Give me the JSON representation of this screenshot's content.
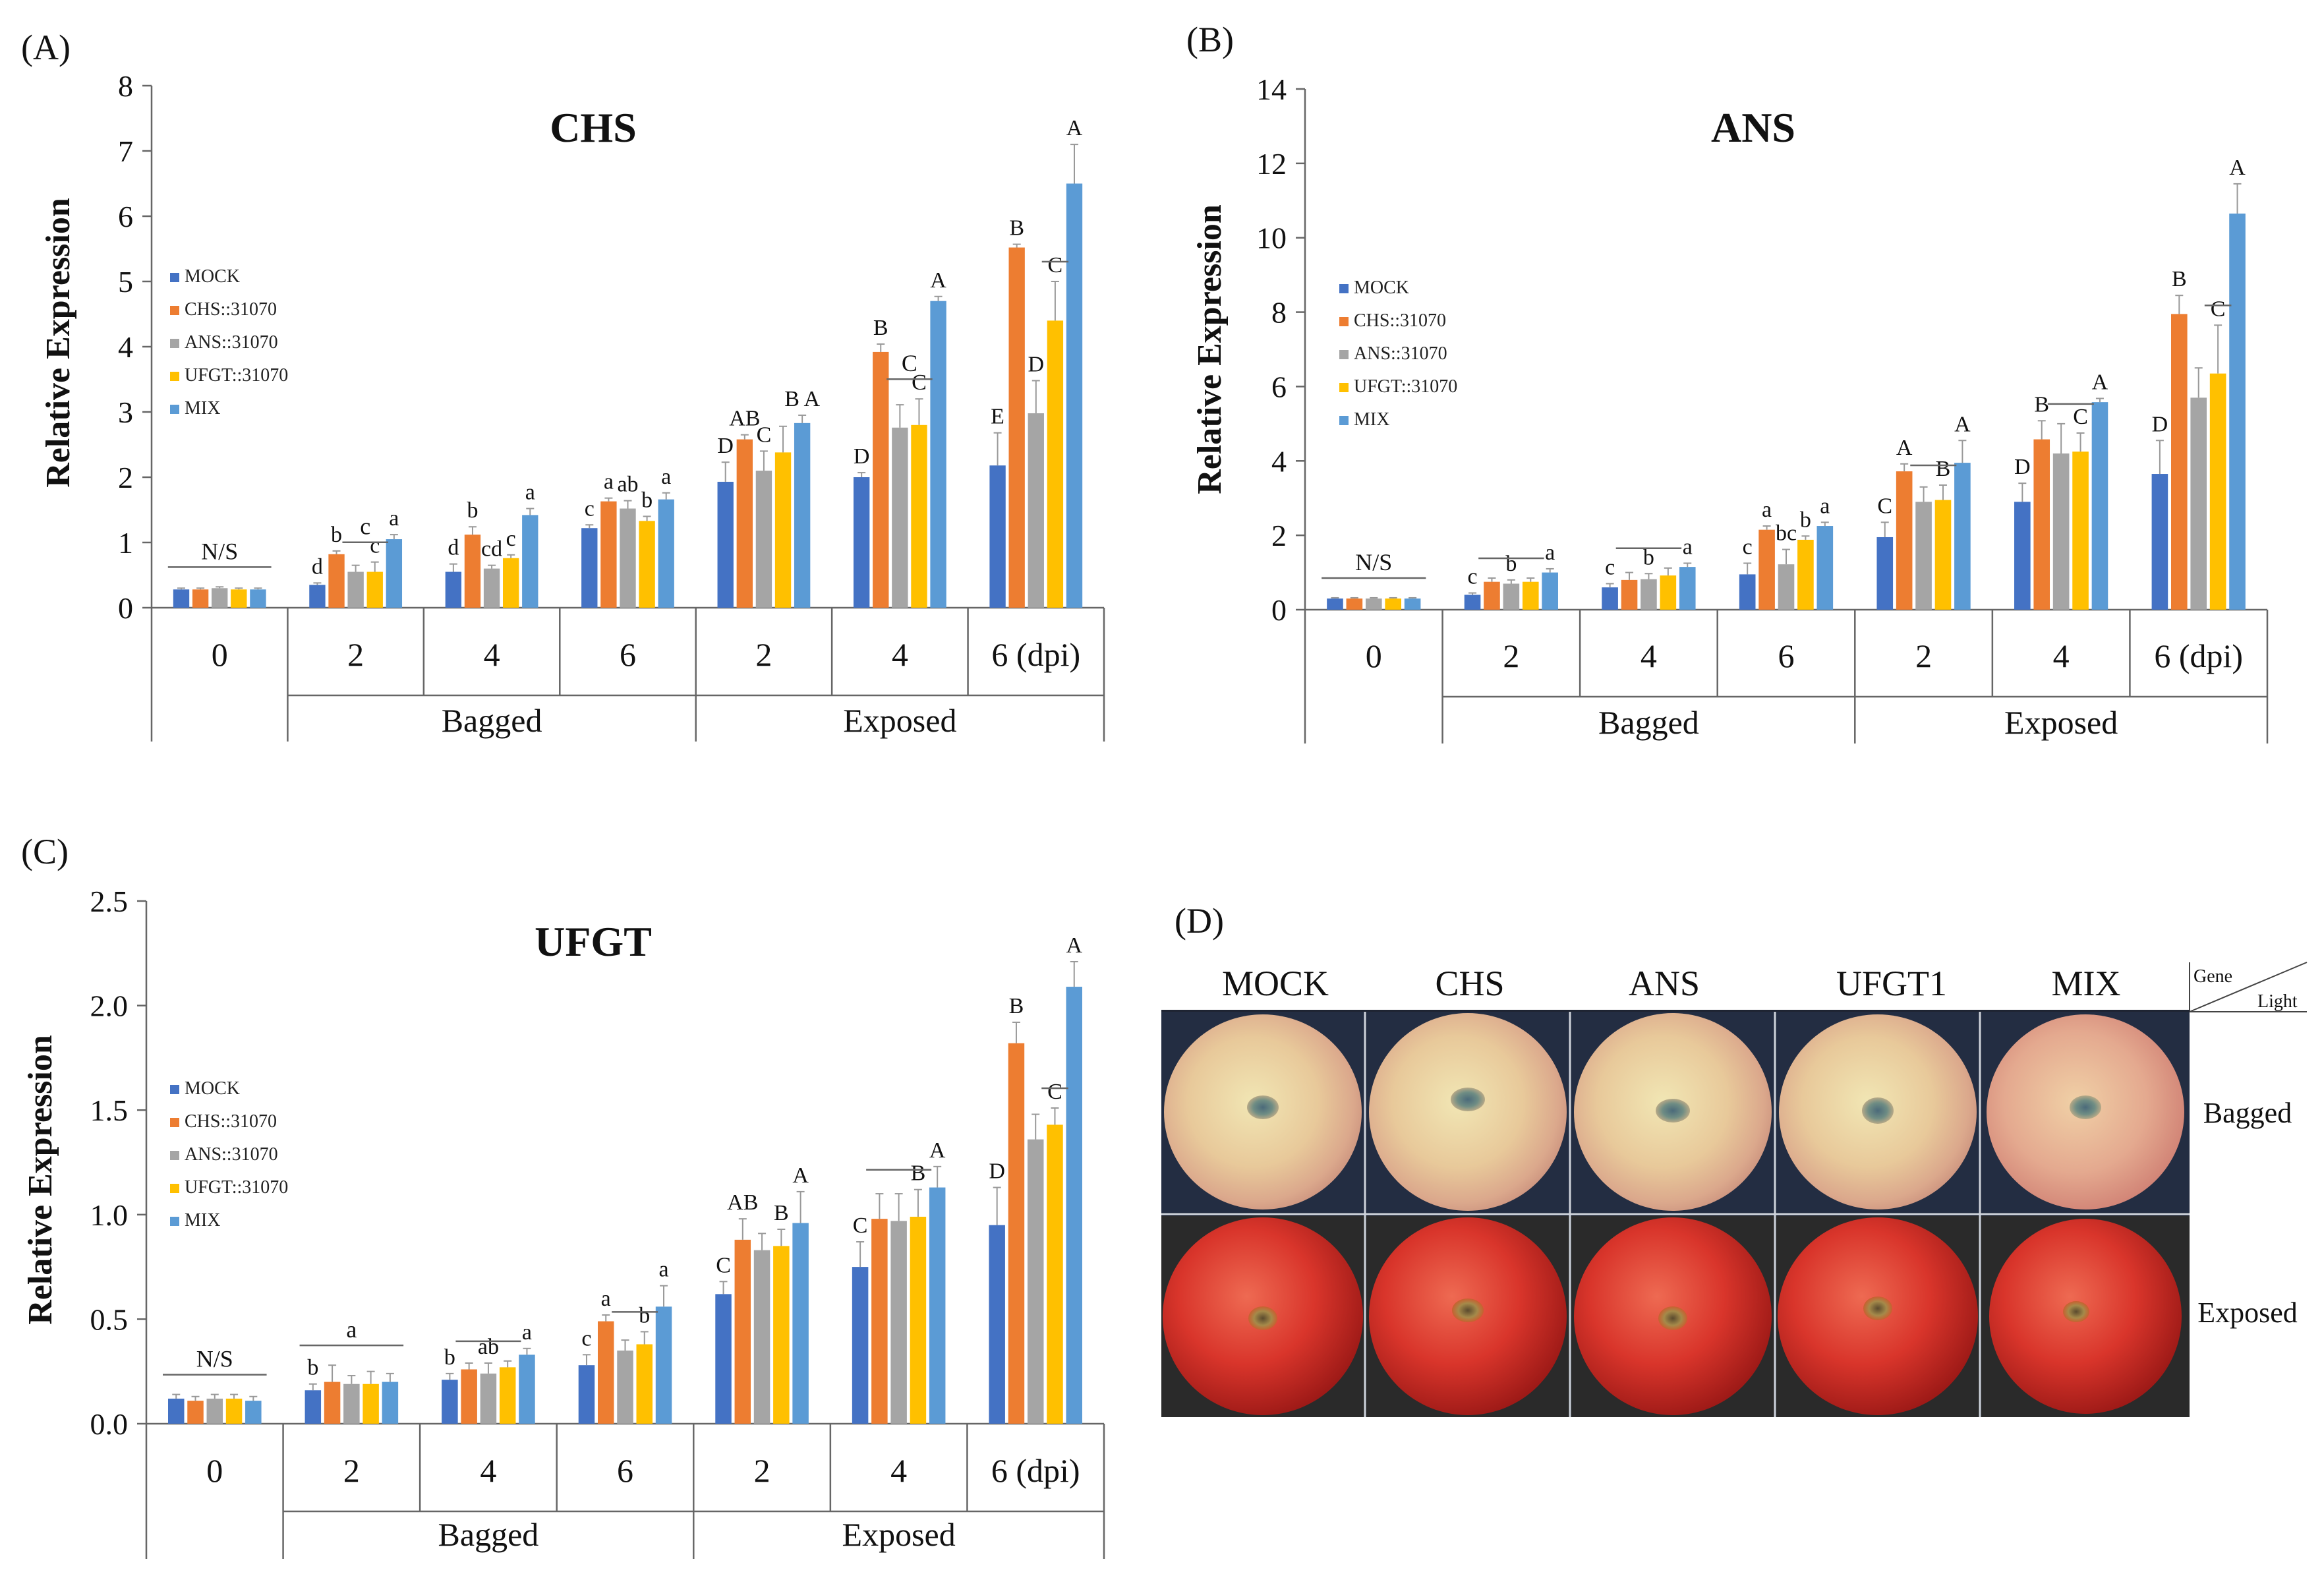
{
  "colors": {
    "MOCK": "#4472c4",
    "CHS::31070": "#ed7d31",
    "ANS::31070": "#a5a5a5",
    "UFGT::31070": "#ffc000",
    "MIX": "#5b9bd5"
  },
  "chart_data": [
    {
      "panel": "(A)",
      "type": "bar",
      "title": "CHS",
      "ylabel": "Relative Expression",
      "ylim": [
        0,
        8
      ],
      "yticks": [
        "0",
        "1",
        "2",
        "3",
        "4",
        "5",
        "6",
        "7",
        "8"
      ],
      "grid": false,
      "legend_position": "left",
      "categories": [
        "0",
        "2",
        "4",
        "6",
        "2",
        "4",
        "6 (dpi)"
      ],
      "groups": [
        {
          "label": "Bagged",
          "from": 1,
          "to": 3
        },
        {
          "label": "Exposed",
          "from": 4,
          "to": 6
        }
      ],
      "series": [
        {
          "name": "MOCK",
          "values": [
            0.28,
            0.35,
            0.55,
            1.22,
            1.93,
            2.0,
            2.18
          ],
          "errors": [
            0.02,
            0.03,
            0.12,
            0.05,
            0.3,
            0.07,
            0.5
          ]
        },
        {
          "name": "CHS::31070",
          "values": [
            0.28,
            0.82,
            1.12,
            1.63,
            2.58,
            3.92,
            5.52
          ],
          "errors": [
            0.02,
            0.05,
            0.12,
            0.05,
            0.07,
            0.12,
            0.05
          ]
        },
        {
          "name": "ANS::31070",
          "values": [
            0.3,
            0.55,
            0.6,
            1.52,
            2.1,
            2.76,
            2.98
          ],
          "errors": [
            0.02,
            0.1,
            0.05,
            0.12,
            0.3,
            0.35,
            0.5
          ]
        },
        {
          "name": "UFGT::31070",
          "values": [
            0.28,
            0.55,
            0.76,
            1.33,
            2.38,
            2.8,
            4.4
          ],
          "errors": [
            0.02,
            0.15,
            0.05,
            0.07,
            0.4,
            0.4,
            0.6
          ]
        },
        {
          "name": "MIX",
          "values": [
            0.28,
            1.05,
            1.42,
            1.66,
            2.83,
            4.7,
            6.5
          ],
          "errors": [
            0.02,
            0.07,
            0.1,
            0.1,
            0.12,
            0.07,
            0.6
          ]
        }
      ],
      "letters": [
        [
          "",
          "d",
          "d",
          "c",
          "D",
          "D",
          "E"
        ],
        [
          "",
          "b",
          "b",
          "a",
          "AB",
          "B",
          "B"
        ],
        [
          "",
          "",
          "cd",
          "ab",
          "C",
          "",
          "D"
        ],
        [
          "",
          "c",
          "c",
          "b",
          "",
          "C",
          "C"
        ],
        [
          "",
          "a",
          "a",
          "a",
          "B A",
          "A",
          "A"
        ]
      ],
      "lines": [
        {
          "cat": 0,
          "from": 0,
          "to": 4,
          "label": "N/S"
        },
        {
          "cat": 1,
          "from": 2,
          "to": 3,
          "label": "c"
        },
        {
          "cat": 5,
          "from": 2,
          "to": 3,
          "label": "C"
        },
        {
          "cat": 6,
          "from": 3,
          "to": 3,
          "label": ""
        }
      ]
    },
    {
      "panel": "(B)",
      "type": "bar",
      "title": "ANS",
      "ylabel": "Relative Expression",
      "ylim": [
        0,
        14
      ],
      "yticks": [
        "0",
        "2",
        "4",
        "6",
        "8",
        "10",
        "12",
        "14"
      ],
      "grid": false,
      "legend_position": "left",
      "categories": [
        "0",
        "2",
        "4",
        "6",
        "2",
        "4",
        "6 (dpi)"
      ],
      "groups": [
        {
          "label": "Bagged",
          "from": 1,
          "to": 3
        },
        {
          "label": "Exposed",
          "from": 4,
          "to": 6
        }
      ],
      "series": [
        {
          "name": "MOCK",
          "values": [
            0.3,
            0.4,
            0.6,
            0.95,
            1.95,
            2.9,
            3.65
          ],
          "errors": [
            0.02,
            0.05,
            0.1,
            0.3,
            0.4,
            0.5,
            0.9
          ]
        },
        {
          "name": "CHS::31070",
          "values": [
            0.3,
            0.75,
            0.8,
            2.15,
            3.72,
            4.58,
            7.95
          ],
          "errors": [
            0.02,
            0.1,
            0.2,
            0.1,
            0.2,
            0.5,
            0.5
          ]
        },
        {
          "name": "ANS::31070",
          "values": [
            0.3,
            0.7,
            0.82,
            1.22,
            2.9,
            4.2,
            5.7
          ],
          "errors": [
            0.02,
            0.1,
            0.15,
            0.4,
            0.4,
            0.8,
            0.8
          ]
        },
        {
          "name": "UFGT::31070",
          "values": [
            0.3,
            0.75,
            0.92,
            1.88,
            2.95,
            4.25,
            6.35
          ],
          "errors": [
            0.02,
            0.1,
            0.2,
            0.1,
            0.4,
            0.5,
            1.3
          ]
        },
        {
          "name": "MIX",
          "values": [
            0.3,
            1.0,
            1.15,
            2.25,
            3.95,
            5.58,
            10.65
          ],
          "errors": [
            0.02,
            0.1,
            0.1,
            0.1,
            0.6,
            0.1,
            0.8
          ]
        }
      ],
      "letters": [
        [
          "",
          "c",
          "c",
          "c",
          "C",
          "D",
          "D"
        ],
        [
          "",
          "",
          "",
          "a",
          "A",
          "B",
          "B"
        ],
        [
          "",
          "b",
          "b",
          "bc",
          "",
          "",
          ""
        ],
        [
          "",
          "",
          "",
          "b",
          "B",
          "C",
          "C"
        ],
        [
          "",
          "a",
          "a",
          "a",
          "A",
          "A",
          "A"
        ]
      ],
      "lines": [
        {
          "cat": 0,
          "from": 0,
          "to": 4,
          "label": "N/S"
        },
        {
          "cat": 1,
          "from": 1,
          "to": 3,
          "label": ""
        },
        {
          "cat": 2,
          "from": 1,
          "to": 3,
          "label": ""
        },
        {
          "cat": 4,
          "from": 2,
          "to": 3,
          "label": ""
        },
        {
          "cat": 5,
          "from": 2,
          "to": 3,
          "label": ""
        },
        {
          "cat": 6,
          "from": 3,
          "to": 3,
          "label": ""
        }
      ]
    },
    {
      "panel": "(C)",
      "type": "bar",
      "title": "UFGT",
      "ylabel": "Relative Expression",
      "ylim": [
        0,
        2.5
      ],
      "yticks": [
        "0.0",
        "0.5",
        "1.0",
        "1.5",
        "2.0",
        "2.5"
      ],
      "grid": false,
      "legend_position": "left",
      "categories": [
        "0",
        "2",
        "4",
        "6",
        "2",
        "4",
        "6 (dpi)"
      ],
      "groups": [
        {
          "label": "Bagged",
          "from": 1,
          "to": 3
        },
        {
          "label": "Exposed",
          "from": 4,
          "to": 6
        }
      ],
      "series": [
        {
          "name": "MOCK",
          "values": [
            0.12,
            0.16,
            0.21,
            0.28,
            0.62,
            0.75,
            0.95
          ],
          "errors": [
            0.02,
            0.03,
            0.03,
            0.05,
            0.06,
            0.12,
            0.18
          ]
        },
        {
          "name": "CHS::31070",
          "values": [
            0.11,
            0.2,
            0.26,
            0.49,
            0.88,
            0.98,
            1.82
          ],
          "errors": [
            0.02,
            0.08,
            0.03,
            0.03,
            0.1,
            0.12,
            0.1
          ]
        },
        {
          "name": "ANS::31070",
          "values": [
            0.12,
            0.19,
            0.24,
            0.35,
            0.83,
            0.97,
            1.36
          ],
          "errors": [
            0.02,
            0.04,
            0.05,
            0.05,
            0.08,
            0.13,
            0.12
          ]
        },
        {
          "name": "UFGT::31070",
          "values": [
            0.12,
            0.19,
            0.27,
            0.38,
            0.85,
            0.99,
            1.43
          ],
          "errors": [
            0.02,
            0.06,
            0.03,
            0.06,
            0.08,
            0.13,
            0.08
          ]
        },
        {
          "name": "MIX",
          "values": [
            0.11,
            0.2,
            0.33,
            0.56,
            0.96,
            1.13,
            2.09
          ],
          "errors": [
            0.02,
            0.04,
            0.03,
            0.1,
            0.15,
            0.1,
            0.12
          ]
        }
      ],
      "letters": [
        [
          "",
          "b",
          "b",
          "c",
          "C",
          "C",
          "D"
        ],
        [
          "",
          "",
          "",
          "a",
          "AB",
          "",
          "B"
        ],
        [
          "",
          "",
          "ab",
          "",
          "",
          "",
          ""
        ],
        [
          "",
          "",
          "",
          "b",
          "B",
          "B",
          "C"
        ],
        [
          "",
          "",
          "a",
          "a",
          "A",
          "A",
          "A"
        ]
      ],
      "lines": [
        {
          "cat": 0,
          "from": 0,
          "to": 4,
          "label": "N/S"
        },
        {
          "cat": 1,
          "from": 0,
          "to": 4,
          "label": "a"
        },
        {
          "cat": 2,
          "from": 1,
          "to": 3,
          "label": ""
        },
        {
          "cat": 3,
          "from": 2,
          "to": 3,
          "label": ""
        },
        {
          "cat": 5,
          "from": 1,
          "to": 3,
          "label": ""
        },
        {
          "cat": 6,
          "from": 3,
          "to": 3,
          "label": ""
        }
      ]
    }
  ],
  "photo_panel": {
    "panel": "(D)",
    "columns": [
      "MOCK",
      "CHS",
      "ANS",
      "UFGT1",
      "MIX"
    ],
    "rows": [
      "Bagged",
      "Exposed"
    ],
    "corner_top": "Gene",
    "corner_bottom": "Light"
  }
}
